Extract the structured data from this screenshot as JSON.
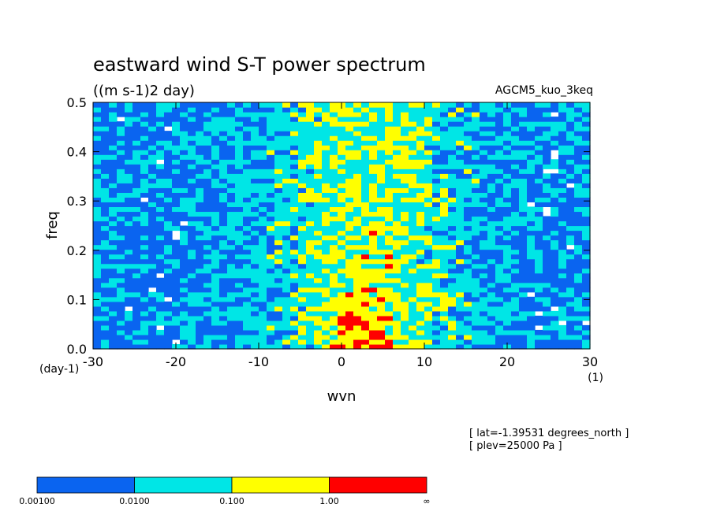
{
  "chart_data": {
    "type": "heatmap",
    "title": "eastward wind S-T power spectrum",
    "units": "((m s-1)2 day)",
    "model": "AGCM5_kuo_3keq",
    "xlabel": "wvn",
    "ylabel": "freq",
    "x_unit": "(1)",
    "y_unit": "(day-1)",
    "xlim": [
      -30,
      30
    ],
    "ylim": [
      0,
      0.5
    ],
    "xticks": [
      -30,
      -20,
      -10,
      0,
      10,
      20,
      30
    ],
    "yticks": [
      0.0,
      0.1,
      0.2,
      0.3,
      0.4,
      0.5
    ],
    "xtick_labels": [
      "-30",
      "-20",
      "-10",
      "0",
      "10",
      "20",
      "30"
    ],
    "ytick_labels": [
      "0.0",
      "0.1",
      "0.2",
      "0.3",
      "0.4",
      "0.5"
    ],
    "grid": false,
    "legend": "colorbar-bottom",
    "contour_levels": [
      0.001,
      0.01,
      0.1,
      1.0
    ],
    "colorbar_labels": [
      "0.00100",
      "0.0100",
      "0.100",
      "1.00",
      "∞"
    ],
    "level_colors": [
      "#ffffff",
      "#0a64f0",
      "#00e6e6",
      "#ffff00",
      "#ff0000"
    ],
    "annotations": [
      "[ lat=-1.39531 degrees_north ]",
      "[ plev=25000 Pa ]"
    ]
  }
}
